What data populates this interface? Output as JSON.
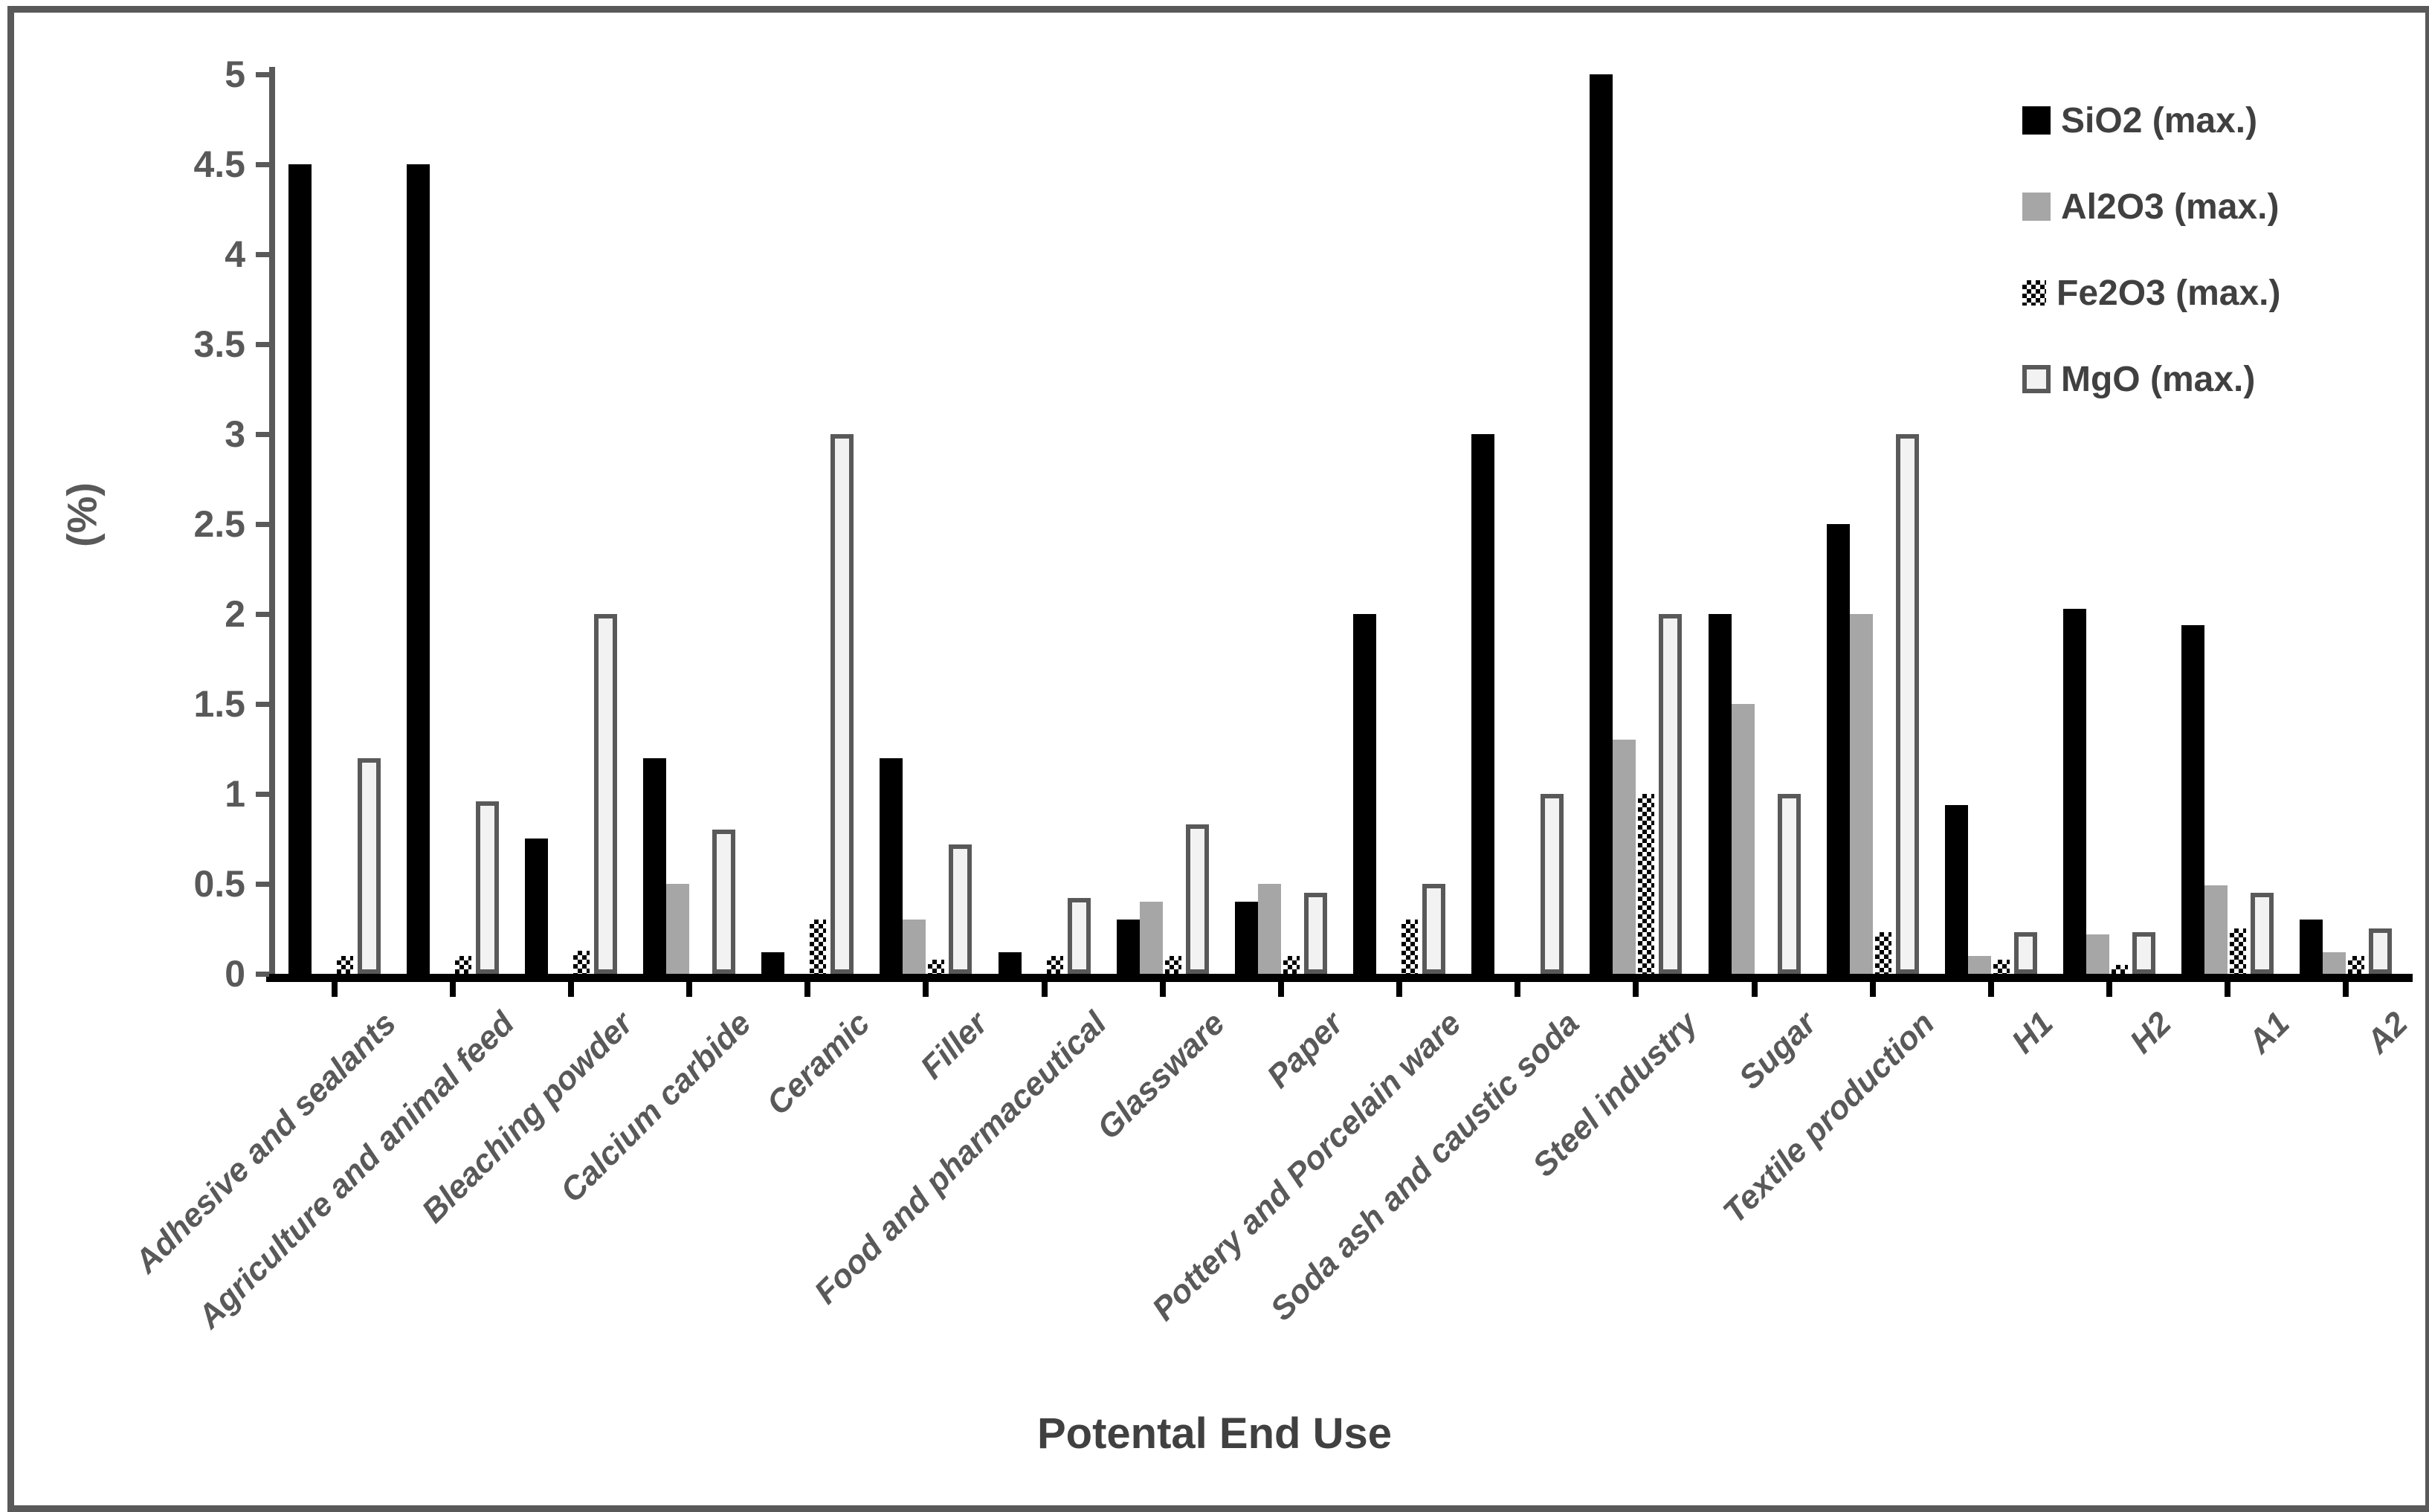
{
  "chart_data": {
    "type": "bar",
    "title": "",
    "xlabel": "Potental End Use",
    "ylabel": "(%)",
    "ylim": [
      0,
      5
    ],
    "ytick_step": 0.5,
    "yticks": [
      "0",
      "0.5",
      "1",
      "1.5",
      "2",
      "2.5",
      "3",
      "3.5",
      "4",
      "4.5",
      "5"
    ],
    "grid": false,
    "legend_position": "top-right",
    "categories": [
      "Adhesive and sealants",
      "Agriculture and animal feed",
      "Bleaching powder",
      "Calcium carbide",
      "Ceramic",
      "Filler",
      "Food and pharmaceutical",
      "Glassware",
      "Paper",
      "Pottery and Porcelain ware",
      "Soda ash and caustic soda",
      "Steel industry",
      "Sugar",
      "Textile production",
      "H1",
      "H2",
      "A1",
      "A2"
    ],
    "series": [
      {
        "name": "SiO2 (max.)",
        "key": "sio2",
        "pattern": "solid",
        "fill": "#000000",
        "values": [
          4.5,
          4.5,
          0.75,
          1.2,
          0.12,
          1.2,
          0.12,
          0.3,
          0.4,
          2,
          3,
          5,
          2,
          2.5,
          0.94,
          2.03,
          1.94,
          0.3
        ]
      },
      {
        "name": "Al2O3 (max.)",
        "key": "al2o3",
        "pattern": "solid",
        "fill": "#a6a6a6",
        "values": [
          0,
          0,
          0,
          0.5,
          0,
          0.3,
          0,
          0.4,
          0.5,
          0,
          0,
          1.3,
          1.5,
          2,
          0.1,
          0.22,
          0.49,
          0.12
        ]
      },
      {
        "name": "Fe2O3 (max.)",
        "key": "fe2o3",
        "pattern": "checker",
        "fill": "#ffffff",
        "values": [
          0.1,
          0.1,
          0.13,
          0,
          0.3,
          0.08,
          0.1,
          0.1,
          0.1,
          0.3,
          0,
          1,
          0,
          0.23,
          0.08,
          0.05,
          0.25,
          0.1
        ]
      },
      {
        "name": "MgO (max.)",
        "key": "mgo",
        "pattern": "outlined",
        "fill": "#f2f2f2",
        "border": "#595959",
        "values": [
          1.2,
          0.96,
          2,
          0.8,
          3,
          0.72,
          0.42,
          0.83,
          0.45,
          0.5,
          1,
          2,
          1,
          3,
          0.23,
          0.23,
          0.45,
          0.25
        ]
      }
    ],
    "axis_colors": {
      "y_axis": "#595959",
      "x_axis": "#000000",
      "tick_text": "#595959",
      "title_text": "#404040"
    }
  }
}
